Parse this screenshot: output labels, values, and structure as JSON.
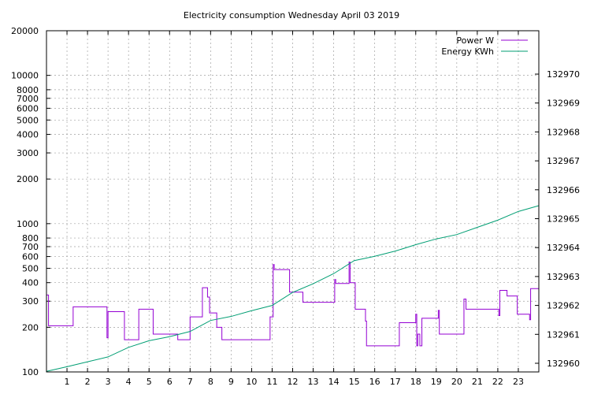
{
  "chart_data": {
    "type": "line",
    "title": "Electricity consumption Wednesday April 03 2019",
    "grid": true,
    "legend_position": "top-right",
    "x_axis": {
      "range": [
        0,
        24
      ],
      "ticks": [
        1,
        2,
        3,
        4,
        5,
        6,
        7,
        8,
        9,
        10,
        11,
        12,
        13,
        14,
        15,
        16,
        17,
        18,
        19,
        20,
        21,
        22,
        23
      ],
      "tick_labels": [
        "1",
        "2",
        "3",
        "4",
        "5",
        "6",
        "7",
        "8",
        "9",
        "10",
        "11",
        "12",
        "13",
        "14",
        "15",
        "16",
        "17",
        "18",
        "19",
        "20",
        "21",
        "22",
        "23"
      ]
    },
    "y_axis_left": {
      "scale": "log",
      "range": [
        100,
        20000
      ],
      "ticks": [
        100,
        200,
        300,
        400,
        500,
        600,
        700,
        800,
        1000,
        2000,
        3000,
        4000,
        5000,
        6000,
        7000,
        8000,
        10000,
        20000
      ],
      "tick_labels": [
        "100",
        "200",
        "300",
        "400",
        "500",
        "600",
        "700",
        "800",
        "1000",
        "2000",
        "3000",
        "4000",
        "5000",
        "6000",
        "7000",
        "8000",
        "10000",
        "20000"
      ]
    },
    "y_axis_right": {
      "scale": "linear",
      "range": [
        132959.7,
        132971.5
      ],
      "ticks": [
        132960,
        132961,
        132962,
        132963,
        132964,
        132965,
        132966,
        132967,
        132968,
        132969,
        132970
      ],
      "tick_labels": [
        "132960",
        "132961",
        "132962",
        "132963",
        "132964",
        "132965",
        "132966",
        "132967",
        "132968",
        "132969",
        "132970"
      ]
    },
    "series": [
      {
        "name": "Power W",
        "color": "#9400d3",
        "axis": "left",
        "step": true,
        "points": [
          [
            0.0,
            330
          ],
          [
            0.1,
            205
          ],
          [
            1.2,
            205
          ],
          [
            1.3,
            275
          ],
          [
            2.9,
            275
          ],
          [
            2.95,
            170
          ],
          [
            3.0,
            255
          ],
          [
            3.7,
            255
          ],
          [
            3.8,
            165
          ],
          [
            4.4,
            165
          ],
          [
            4.5,
            265
          ],
          [
            5.1,
            265
          ],
          [
            5.2,
            180
          ],
          [
            6.3,
            180
          ],
          [
            6.4,
            165
          ],
          [
            6.9,
            165
          ],
          [
            7.0,
            235
          ],
          [
            7.5,
            235
          ],
          [
            7.6,
            370
          ],
          [
            7.8,
            370
          ],
          [
            7.85,
            320
          ],
          [
            7.95,
            250
          ],
          [
            8.2,
            250
          ],
          [
            8.3,
            200
          ],
          [
            8.5,
            200
          ],
          [
            8.55,
            165
          ],
          [
            10.8,
            165
          ],
          [
            10.9,
            235
          ],
          [
            11.0,
            235
          ],
          [
            11.05,
            530
          ],
          [
            11.1,
            490
          ],
          [
            11.8,
            490
          ],
          [
            11.85,
            345
          ],
          [
            12.45,
            345
          ],
          [
            12.5,
            295
          ],
          [
            14.0,
            295
          ],
          [
            14.05,
            420
          ],
          [
            14.1,
            395
          ],
          [
            14.7,
            395
          ],
          [
            14.75,
            550
          ],
          [
            14.8,
            400
          ],
          [
            15.0,
            400
          ],
          [
            15.05,
            265
          ],
          [
            15.5,
            265
          ],
          [
            15.55,
            220
          ],
          [
            15.6,
            150
          ],
          [
            17.1,
            150
          ],
          [
            17.2,
            215
          ],
          [
            17.9,
            215
          ],
          [
            18.0,
            245
          ],
          [
            18.05,
            150
          ],
          [
            18.1,
            180
          ],
          [
            18.2,
            150
          ],
          [
            18.3,
            230
          ],
          [
            19.05,
            230
          ],
          [
            19.1,
            260
          ],
          [
            19.15,
            180
          ],
          [
            20.3,
            180
          ],
          [
            20.35,
            310
          ],
          [
            20.45,
            265
          ],
          [
            22.0,
            265
          ],
          [
            22.05,
            240
          ],
          [
            22.1,
            355
          ],
          [
            22.4,
            355
          ],
          [
            22.45,
            325
          ],
          [
            22.9,
            325
          ],
          [
            22.95,
            245
          ],
          [
            23.5,
            245
          ],
          [
            23.55,
            225
          ],
          [
            23.6,
            365
          ],
          [
            24.0,
            365
          ]
        ]
      },
      {
        "name": "Energy KWh",
        "color": "#009e73",
        "axis": "right",
        "step": false,
        "points": [
          [
            0,
            132959.72
          ],
          [
            1,
            132959.88
          ],
          [
            2,
            132960.05
          ],
          [
            3,
            132960.22
          ],
          [
            4,
            132960.55
          ],
          [
            5,
            132960.78
          ],
          [
            6,
            132960.92
          ],
          [
            7,
            132961.1
          ],
          [
            8,
            132961.48
          ],
          [
            9,
            132961.62
          ],
          [
            10,
            132961.82
          ],
          [
            11,
            132962.0
          ],
          [
            12,
            132962.45
          ],
          [
            13,
            132962.75
          ],
          [
            14,
            132963.1
          ],
          [
            15,
            132963.55
          ],
          [
            16,
            132963.7
          ],
          [
            17,
            132963.88
          ],
          [
            18,
            132964.1
          ],
          [
            19,
            132964.3
          ],
          [
            20,
            132964.45
          ],
          [
            21,
            132964.7
          ],
          [
            22,
            132964.95
          ],
          [
            23,
            132965.25
          ],
          [
            24,
            132965.45
          ]
        ]
      }
    ]
  }
}
